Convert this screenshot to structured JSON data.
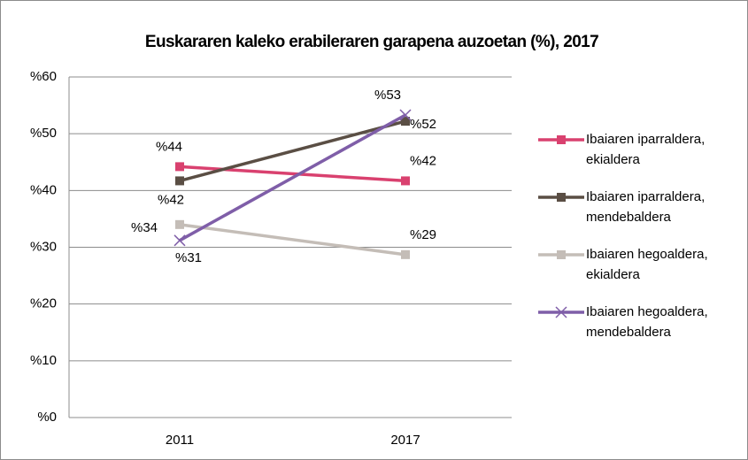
{
  "chart_data": {
    "type": "line",
    "title": "Euskararen kaleko erabileraren garapena auzoetan (%), 2017",
    "categories": [
      "2011",
      "2017"
    ],
    "series": [
      {
        "name": "Ibaiaren iparraldera, ekialdera",
        "color": "#d9416f",
        "marker": "square",
        "values": [
          44.2,
          41.7
        ],
        "value_labels": [
          "%44",
          "%42"
        ]
      },
      {
        "name": "Ibaiaren iparraldera, mendebaldera",
        "color": "#5a4e44",
        "marker": "square",
        "values": [
          41.7,
          52.2
        ],
        "value_labels": [
          "%42",
          "%52"
        ]
      },
      {
        "name": "Ibaiaren hegoaldera, ekialdera",
        "color": "#c4bdb7",
        "marker": "square",
        "values": [
          34.0,
          28.7
        ],
        "value_labels": [
          "%34",
          "%29"
        ]
      },
      {
        "name": "Ibaiaren hegoaldera, mendebaldera",
        "color": "#7f5ea8",
        "marker": "x",
        "values": [
          31.2,
          53.3
        ],
        "value_labels": [
          "%31",
          "%53"
        ]
      }
    ],
    "ylim": [
      0,
      60
    ],
    "yticks": [
      {
        "value": 0,
        "label": "%0"
      },
      {
        "value": 10,
        "label": "%10"
      },
      {
        "value": 20,
        "label": "%20"
      },
      {
        "value": 30,
        "label": "%30"
      },
      {
        "value": 40,
        "label": "%40"
      },
      {
        "value": 50,
        "label": "%50"
      },
      {
        "value": 60,
        "label": "%60"
      }
    ],
    "grid": true,
    "legend": "right"
  }
}
